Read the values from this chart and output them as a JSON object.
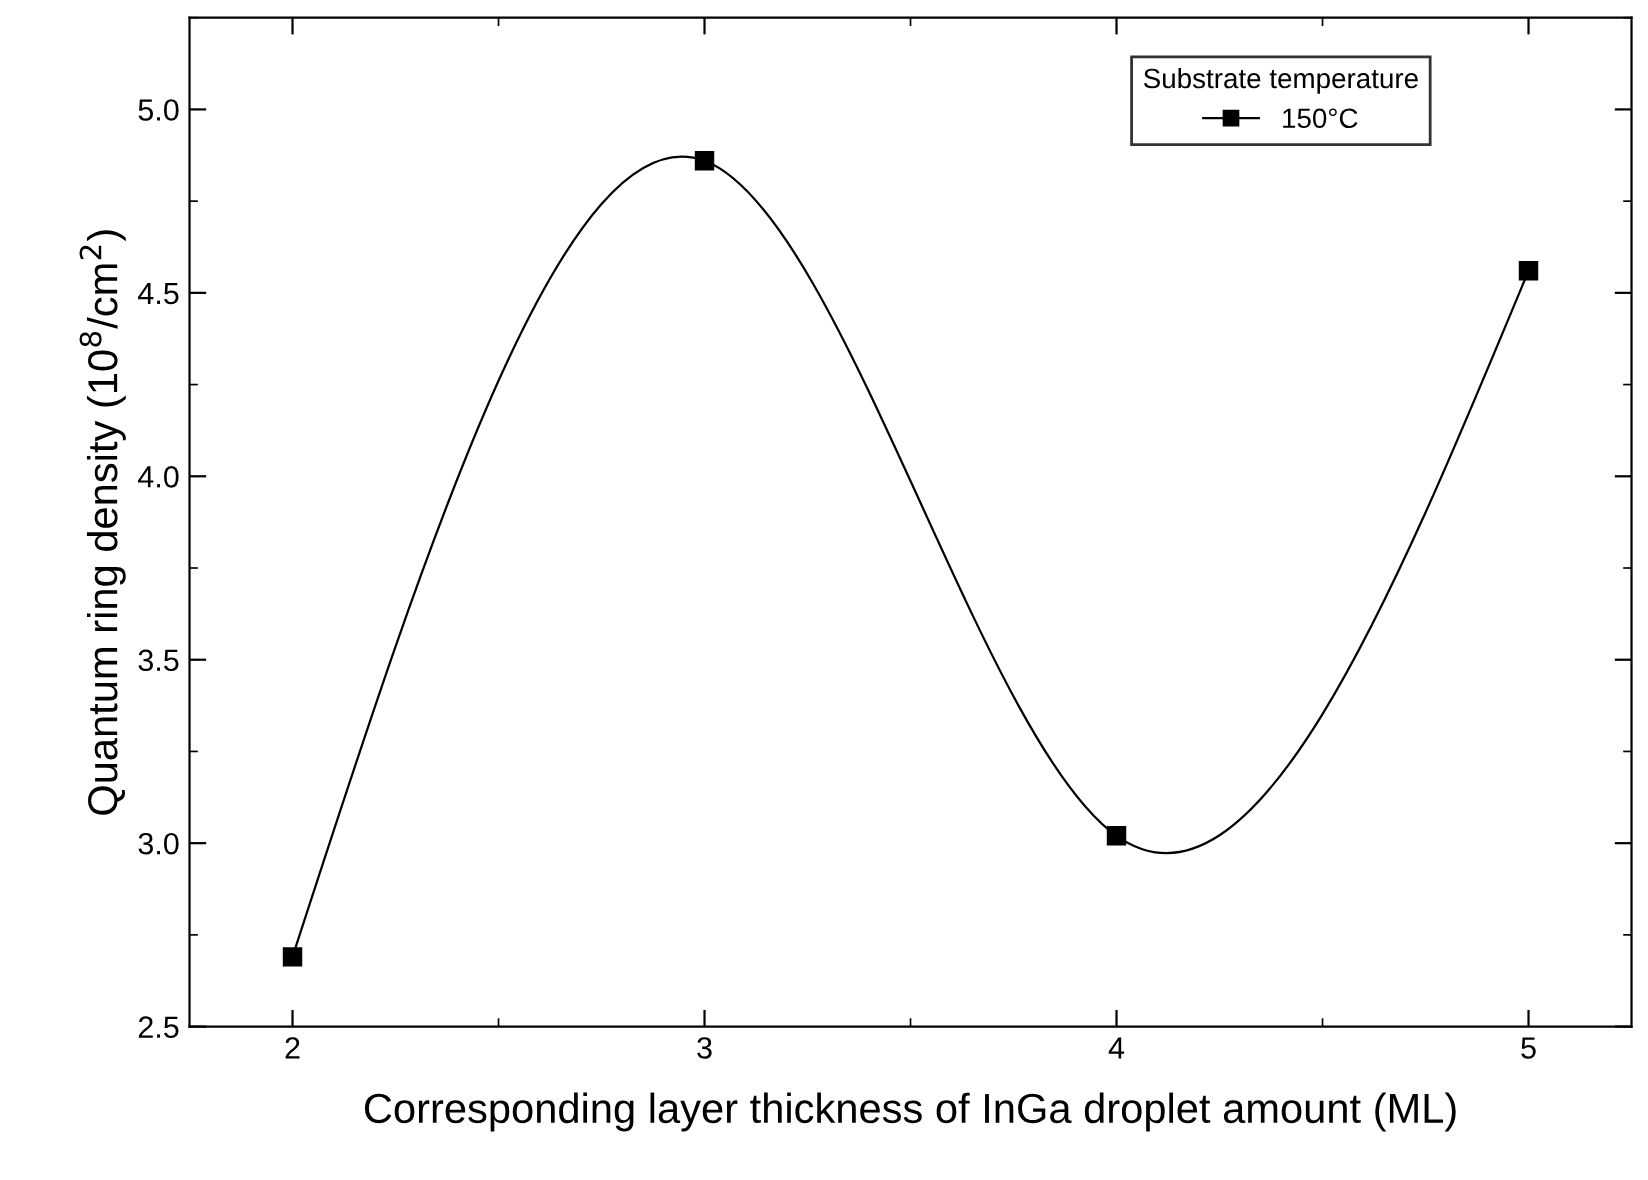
{
  "chart_data": {
    "type": "line",
    "xlabel": "Corresponding layer thickness of InGa droplet amount (ML)",
    "ylabel": "Quantum ring density (10$^{8}$/cm$^{2}$)",
    "legend_title": "Substrate temperature",
    "x": [
      2,
      3,
      4,
      5
    ],
    "series": [
      {
        "name": "150°C",
        "color": "#000000",
        "values": [
          2.69,
          4.86,
          3.02,
          4.56
        ]
      }
    ],
    "xlim": [
      1.75,
      5.25
    ],
    "xticks": [
      2,
      3,
      4,
      5
    ],
    "ylim": [
      2.5,
      5.25
    ],
    "yticks": [
      2.5,
      {
        "value": 3,
        "label": "3.0"
      },
      3.5,
      {
        "value": 4,
        "label": "4.0"
      },
      4.5,
      {
        "value": 5,
        "label": "5.0"
      }
    ],
    "marker": "square",
    "line_style": "solid",
    "legend": "top right",
    "grid": false
  }
}
